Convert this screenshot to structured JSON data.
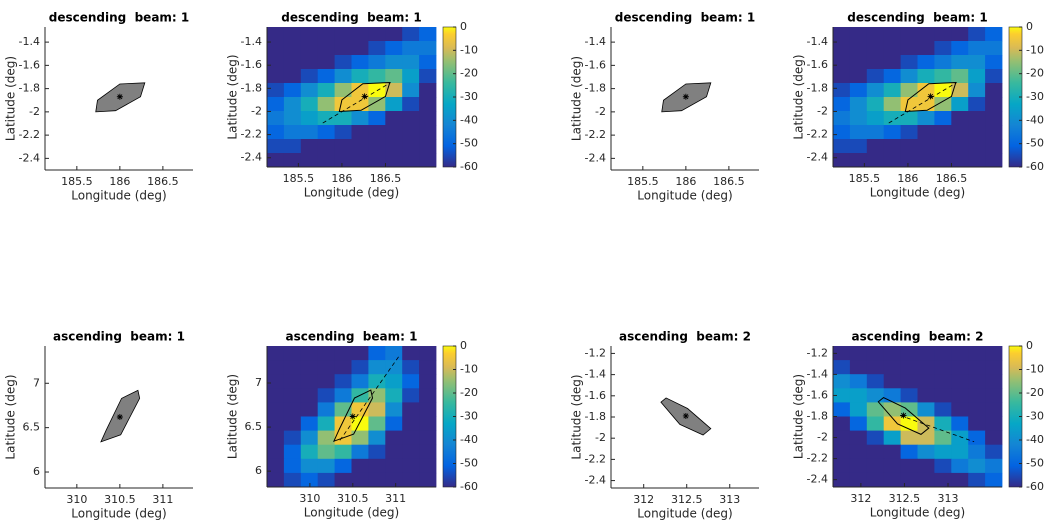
{
  "chart_data": [
    {
      "type": "polygon",
      "title": "descending  beam: 1",
      "x_label": "Longitude (deg)",
      "y_label": "Latitude (deg)",
      "xlim": [
        185.13,
        186.85
      ],
      "ylim": [
        -2.5,
        -1.27
      ],
      "xticks": [
        185.5,
        186,
        186.5
      ],
      "yticks": [
        -1.4,
        -1.6,
        -1.8,
        -2,
        -2.2,
        -2.4
      ],
      "color": "#808080",
      "polygon": {
        "x": [
          185.72,
          185.74,
          186.0,
          186.29,
          186.24,
          185.95
        ],
        "y": [
          -2.0,
          -1.9,
          -1.76,
          -1.75,
          -1.87,
          -1.99
        ]
      },
      "center": {
        "x": 186.0,
        "y": -1.87
      }
    },
    {
      "type": "heatmap",
      "title": "descending  beam: 1",
      "x_label": "Longitude (deg)",
      "y_label": "Latitude (deg)",
      "xlim": [
        185.14,
        187.08
      ],
      "ylim": [
        -2.48,
        -1.27
      ],
      "xticks": [
        185.5,
        186,
        186.5
      ],
      "yticks": [
        -1.4,
        -1.6,
        -1.8,
        -2,
        -2.2,
        -2.4
      ],
      "colormap": "parula",
      "clim": [
        -60,
        0
      ],
      "cticks": [
        0,
        -10,
        -20,
        -30,
        -40,
        -50,
        -60
      ],
      "z": [
        [
          -60,
          -60,
          -60,
          -60,
          -60,
          -60,
          -60,
          -60,
          -55,
          -50
        ],
        [
          -60,
          -60,
          -60,
          -60,
          -60,
          -60,
          -55,
          -50,
          -45,
          -45
        ],
        [
          -60,
          -60,
          -60,
          -60,
          -55,
          -50,
          -45,
          -40,
          -40,
          -50
        ],
        [
          -60,
          -60,
          -55,
          -50,
          -40,
          -30,
          -25,
          -20,
          -35,
          -55
        ],
        [
          -55,
          -50,
          -40,
          -30,
          -15,
          -5,
          0,
          -10,
          -40,
          -60
        ],
        [
          -50,
          -40,
          -30,
          -15,
          -5,
          -5,
          -15,
          -35,
          -55,
          -60
        ],
        [
          -45,
          -40,
          -35,
          -30,
          -30,
          -40,
          -50,
          -60,
          -60,
          -60
        ],
        [
          -50,
          -45,
          -45,
          -50,
          -55,
          -60,
          -60,
          -60,
          -60,
          -60
        ],
        [
          -55,
          -55,
          -60,
          -60,
          -60,
          -60,
          -60,
          -60,
          -60,
          -60
        ],
        [
          -60,
          -60,
          -60,
          -60,
          -60,
          -60,
          -60,
          -60,
          -60,
          -60
        ]
      ],
      "polygon": {
        "x": [
          185.97,
          186.0,
          186.24,
          186.55,
          186.5,
          186.22
        ],
        "y": [
          -2.0,
          -1.9,
          -1.76,
          -1.75,
          -1.87,
          -1.99
        ]
      },
      "center": {
        "x": 186.26,
        "y": -1.87
      },
      "track": {
        "x": [
          185.78,
          186.56
        ],
        "y": [
          -2.1,
          -1.75
        ]
      }
    },
    {
      "type": "polygon",
      "title": "descending  beam: 1",
      "x_label": "Longitude (deg)",
      "y_label": "Latitude (deg)",
      "xlim": [
        185.13,
        186.85
      ],
      "ylim": [
        -2.5,
        -1.27
      ],
      "xticks": [
        185.5,
        186,
        186.5
      ],
      "yticks": [
        -1.4,
        -1.6,
        -1.8,
        -2,
        -2.2,
        -2.4
      ],
      "color": "#808080",
      "polygon": {
        "x": [
          185.72,
          185.74,
          186.0,
          186.29,
          186.24,
          185.95
        ],
        "y": [
          -2.0,
          -1.9,
          -1.76,
          -1.75,
          -1.87,
          -1.99
        ]
      },
      "center": {
        "x": 186.0,
        "y": -1.87
      }
    },
    {
      "type": "heatmap",
      "title": "descending  beam: 1",
      "x_label": "Longitude (deg)",
      "y_label": "Latitude (deg)",
      "xlim": [
        185.14,
        187.08
      ],
      "ylim": [
        -2.48,
        -1.27
      ],
      "xticks": [
        185.5,
        186,
        186.5
      ],
      "yticks": [
        -1.4,
        -1.6,
        -1.8,
        -2,
        -2.2,
        -2.4
      ],
      "colormap": "parula",
      "clim": [
        -60,
        0
      ],
      "cticks": [
        0,
        -10,
        -20,
        -30,
        -40,
        -50,
        -60
      ],
      "z": [
        [
          -60,
          -60,
          -60,
          -60,
          -60,
          -60,
          -60,
          -60,
          -55,
          -50
        ],
        [
          -60,
          -60,
          -60,
          -60,
          -60,
          -60,
          -55,
          -50,
          -45,
          -45
        ],
        [
          -60,
          -60,
          -60,
          -60,
          -55,
          -50,
          -45,
          -40,
          -40,
          -50
        ],
        [
          -60,
          -60,
          -55,
          -50,
          -40,
          -30,
          -25,
          -20,
          -35,
          -55
        ],
        [
          -55,
          -50,
          -40,
          -30,
          -15,
          -5,
          0,
          -10,
          -40,
          -60
        ],
        [
          -50,
          -40,
          -30,
          -15,
          -5,
          -5,
          -15,
          -35,
          -55,
          -60
        ],
        [
          -45,
          -40,
          -35,
          -30,
          -30,
          -40,
          -50,
          -60,
          -60,
          -60
        ],
        [
          -50,
          -45,
          -45,
          -50,
          -55,
          -60,
          -60,
          -60,
          -60,
          -60
        ],
        [
          -55,
          -55,
          -60,
          -60,
          -60,
          -60,
          -60,
          -60,
          -60,
          -60
        ],
        [
          -60,
          -60,
          -60,
          -60,
          -60,
          -60,
          -60,
          -60,
          -60,
          -60
        ]
      ],
      "polygon": {
        "x": [
          185.97,
          186.0,
          186.24,
          186.55,
          186.5,
          186.22
        ],
        "y": [
          -2.0,
          -1.9,
          -1.76,
          -1.75,
          -1.87,
          -1.99
        ]
      },
      "center": {
        "x": 186.26,
        "y": -1.87
      },
      "track": {
        "x": [
          185.78,
          186.56
        ],
        "y": [
          -2.1,
          -1.75
        ]
      }
    },
    {
      "type": "polygon",
      "title": "ascending  beam: 1",
      "x_label": "Longitude (deg)",
      "y_label": "Latitude (deg)",
      "xlim": [
        309.63,
        311.35
      ],
      "ylim": [
        5.82,
        7.42
      ],
      "xticks": [
        310,
        310.5,
        311
      ],
      "yticks": [
        6,
        6.5,
        7
      ],
      "color": "#808080",
      "polygon": {
        "x": [
          310.28,
          310.34,
          310.52,
          310.71,
          310.73,
          310.51
        ],
        "y": [
          6.34,
          6.47,
          6.83,
          6.92,
          6.83,
          6.42
        ]
      },
      "center": {
        "x": 310.5,
        "y": 6.62
      }
    },
    {
      "type": "heatmap",
      "title": "ascending  beam: 1",
      "x_label": "Longitude (deg)",
      "y_label": "Latitude (deg)",
      "xlim": [
        309.5,
        311.47
      ],
      "ylim": [
        5.82,
        7.42
      ],
      "xticks": [
        310,
        310.5,
        311
      ],
      "yticks": [
        6,
        6.5,
        7
      ],
      "colormap": "parula",
      "clim": [
        -60,
        0
      ],
      "cticks": [
        0,
        -10,
        -20,
        -30,
        -40,
        -50,
        -60
      ],
      "z": [
        [
          -60,
          -60,
          -60,
          -60,
          -60,
          -60,
          -50,
          -45,
          -60,
          -60
        ],
        [
          -60,
          -60,
          -60,
          -60,
          -60,
          -55,
          -40,
          -40,
          -55,
          -60
        ],
        [
          -60,
          -60,
          -60,
          -60,
          -55,
          -45,
          -30,
          -35,
          -50,
          -60
        ],
        [
          -60,
          -60,
          -60,
          -55,
          -45,
          -25,
          -15,
          -30,
          -55,
          -60
        ],
        [
          -60,
          -60,
          -60,
          -45,
          -20,
          -5,
          -10,
          -40,
          -60,
          -60
        ],
        [
          -60,
          -60,
          -50,
          -30,
          -5,
          0,
          -20,
          -50,
          -60,
          -60
        ],
        [
          -60,
          -55,
          -40,
          -15,
          -5,
          -15,
          -40,
          -60,
          -60,
          -60
        ],
        [
          -60,
          -50,
          -30,
          -20,
          -25,
          -45,
          -55,
          -60,
          -60,
          -60
        ],
        [
          -60,
          -50,
          -40,
          -40,
          -50,
          -60,
          -60,
          -60,
          -60,
          -60
        ],
        [
          -60,
          -55,
          -50,
          -55,
          -60,
          -60,
          -60,
          -60,
          -60,
          -60
        ]
      ],
      "polygon": {
        "x": [
          310.28,
          310.34,
          310.52,
          310.71,
          310.73,
          310.51
        ],
        "y": [
          6.34,
          6.47,
          6.83,
          6.92,
          6.83,
          6.42
        ]
      },
      "center": {
        "x": 310.5,
        "y": 6.62
      },
      "track": {
        "x": [
          310.35,
          311.05
        ],
        "y": [
          6.35,
          7.32
        ]
      }
    },
    {
      "type": "polygon",
      "title": "ascending  beam: 2",
      "x_label": "Longitude (deg)",
      "y_label": "Latitude (deg)",
      "xlim": [
        311.62,
        313.34
      ],
      "ylim": [
        -2.47,
        -1.13
      ],
      "xticks": [
        312,
        312.5,
        313
      ],
      "yticks": [
        -1.2,
        -1.4,
        -1.6,
        -1.8,
        -2,
        -2.2,
        -2.4
      ],
      "color": "#808080",
      "polygon": {
        "x": [
          312.2,
          312.26,
          312.51,
          312.78,
          312.69,
          312.42
        ],
        "y": [
          -1.66,
          -1.62,
          -1.72,
          -1.91,
          -1.97,
          -1.87
        ]
      },
      "center": {
        "x": 312.49,
        "y": -1.79
      }
    },
    {
      "type": "heatmap",
      "title": "ascending  beam: 2",
      "x_label": "Longitude (deg)",
      "y_label": "Latitude (deg)",
      "xlim": [
        311.68,
        313.62
      ],
      "ylim": [
        -2.47,
        -1.13
      ],
      "xticks": [
        312,
        312.5,
        313
      ],
      "yticks": [
        -1.2,
        -1.4,
        -1.6,
        -1.8,
        -2,
        -2.2,
        -2.4
      ],
      "colormap": "parula",
      "clim": [
        -60,
        0
      ],
      "cticks": [
        0,
        -10,
        -20,
        -30,
        -40,
        -50,
        -60
      ],
      "z": [
        [
          -60,
          -60,
          -60,
          -60,
          -60,
          -60,
          -60,
          -60,
          -60,
          -60
        ],
        [
          -55,
          -60,
          -60,
          -60,
          -60,
          -60,
          -60,
          -60,
          -60,
          -60
        ],
        [
          -40,
          -45,
          -55,
          -60,
          -60,
          -60,
          -60,
          -60,
          -60,
          -60
        ],
        [
          -35,
          -35,
          -40,
          -45,
          -55,
          -60,
          -60,
          -60,
          -60,
          -60
        ],
        [
          -50,
          -35,
          -20,
          -15,
          -20,
          -40,
          -55,
          -60,
          -60,
          -60
        ],
        [
          -60,
          -50,
          -25,
          -5,
          0,
          -10,
          -30,
          -50,
          -60,
          -60
        ],
        [
          -60,
          -60,
          -55,
          -35,
          -10,
          -10,
          -20,
          -35,
          -50,
          -60
        ],
        [
          -60,
          -60,
          -60,
          -60,
          -50,
          -40,
          -35,
          -35,
          -45,
          -55
        ],
        [
          -60,
          -60,
          -60,
          -60,
          -60,
          -60,
          -55,
          -45,
          -40,
          -45
        ],
        [
          -60,
          -60,
          -60,
          -60,
          -60,
          -60,
          -60,
          -60,
          -55,
          -50
        ]
      ],
      "polygon": {
        "x": [
          312.2,
          312.26,
          312.51,
          312.78,
          312.69,
          312.42
        ],
        "y": [
          -1.66,
          -1.62,
          -1.72,
          -1.91,
          -1.97,
          -1.87
        ]
      },
      "center": {
        "x": 312.49,
        "y": -1.79
      },
      "track": {
        "x": [
          312.45,
          313.3
        ],
        "y": [
          -1.79,
          -2.04
        ]
      }
    }
  ]
}
